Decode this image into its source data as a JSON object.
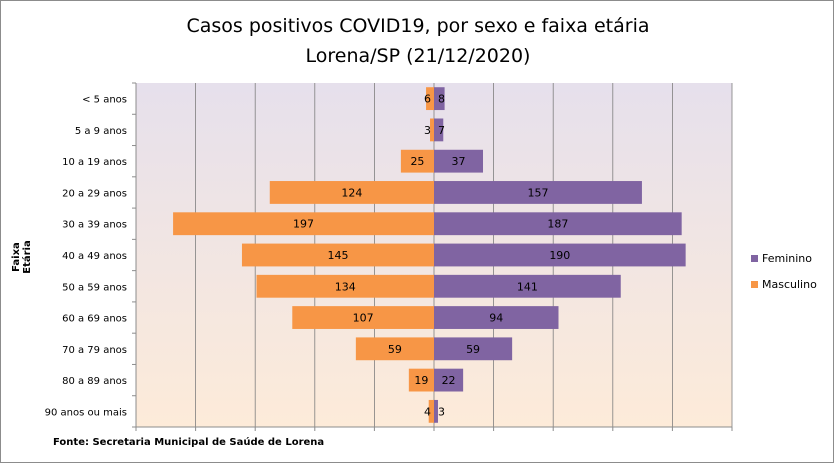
{
  "chart_data": {
    "type": "bar",
    "title": "Casos positivos COVID19, por sexo e faixa etária",
    "subtitle": "Lorena/SP (21/12/2020)",
    "ylabel": "Faixa Etária",
    "source": "Fonte: Secretaria Municipal de Saúde de Lorena",
    "categories": [
      "< 5 anos",
      "5 a 9 anos",
      "10 a 19 anos",
      "20 a 29 anos",
      "30 a 39 anos",
      "40 a 49 anos",
      "50 a 59 anos",
      "60 a 69 anos",
      "70 a 79 anos",
      "80 a 89 anos",
      "90 anos ou mais"
    ],
    "series": [
      {
        "name": "Feminino",
        "color": "#8064a2",
        "values": [
          8,
          7,
          37,
          157,
          187,
          190,
          141,
          94,
          59,
          22,
          3
        ]
      },
      {
        "name": "Masculino",
        "color": "#f79646",
        "values": [
          6,
          3,
          25,
          124,
          197,
          145,
          134,
          107,
          59,
          19,
          4
        ]
      }
    ],
    "xlim": [
      -225,
      225
    ],
    "grid": true,
    "legend": "right",
    "background_gradient": [
      "#e6e0ec",
      "#fdebd9"
    ]
  }
}
